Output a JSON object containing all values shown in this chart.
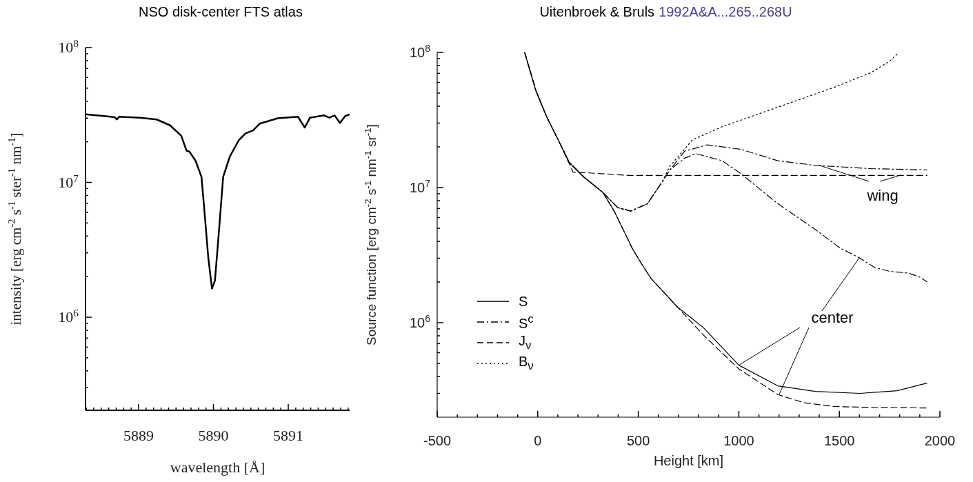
{
  "chart_data": [
    {
      "type": "line",
      "title": "NSO disk-center FTS atlas",
      "xlabel": "wavelength [Å]",
      "ylabel": "intensity [erg cm$^{-2}$ s$^{-1}$ ster$^{-1}$ nm$^{-1}$]",
      "log": "y",
      "line_style": "solid",
      "color": "#000000",
      "x": [
        5888.29,
        5888.56,
        5888.68,
        5888.71,
        5888.74,
        5889.02,
        5889.24,
        5889.42,
        5889.57,
        5889.64,
        5889.68,
        5889.76,
        5889.84,
        5889.88,
        5889.93,
        5889.98,
        5890.02,
        5890.07,
        5890.13,
        5890.22,
        5890.34,
        5890.43,
        5890.53,
        5890.62,
        5890.86,
        5891.13,
        5891.22,
        5891.29,
        5891.48,
        5891.55,
        5891.62,
        5891.69,
        5891.76,
        5891.82
      ],
      "values": [
        32000000.0,
        31000000.0,
        30400000.0,
        29300000.0,
        30700000.0,
        30200000.0,
        29300000.0,
        26500000.0,
        22200000.0,
        17200000.0,
        16900000.0,
        14500000.0,
        11000000.0,
        6100000.0,
        2800000.0,
        1630000.0,
        1870000.0,
        4100000.0,
        11000000.0,
        15600000.0,
        20600000.0,
        23100000.0,
        24300000.0,
        27300000.0,
        29900000.0,
        30700000.0,
        25500000.0,
        30200000.0,
        31400000.0,
        30200000.0,
        31400000.0,
        27600000.0,
        31000000.0,
        31900000.0
      ],
      "xlim": [
        5888.29,
        5891.82
      ],
      "ylim": [
        204000,
        100000000
      ],
      "xticks": [
        {
          "value": 5888.3,
          "label": null
        },
        {
          "value": 5888.4,
          "label": null
        },
        {
          "value": 5888.5,
          "label": null
        },
        {
          "value": 5888.6,
          "label": null
        },
        {
          "value": 5888.7,
          "label": null
        },
        {
          "value": 5888.8,
          "label": null
        },
        {
          "value": 5888.9,
          "label": null
        },
        5889,
        {
          "value": 5889.1,
          "label": null
        },
        {
          "value": 5889.2,
          "label": null
        },
        {
          "value": 5889.3,
          "label": null
        },
        {
          "value": 5889.4,
          "label": null
        },
        {
          "value": 5889.5,
          "label": null
        },
        {
          "value": 5889.6,
          "label": null
        },
        {
          "value": 5889.7,
          "label": null
        },
        {
          "value": 5889.8,
          "label": null
        },
        {
          "value": 5889.9,
          "label": null
        },
        5890,
        {
          "value": 5890.1,
          "label": null
        },
        {
          "value": 5890.2,
          "label": null
        },
        {
          "value": 5890.3,
          "label": null
        },
        {
          "value": 5890.4,
          "label": null
        },
        {
          "value": 5890.5,
          "label": null
        },
        {
          "value": 5890.6,
          "label": null
        },
        {
          "value": 5890.7,
          "label": null
        },
        {
          "value": 5890.8,
          "label": null
        },
        {
          "value": 5890.9,
          "label": null
        },
        5891,
        {
          "value": 5891.1,
          "label": null
        },
        {
          "value": 5891.2,
          "label": null
        },
        {
          "value": 5891.3,
          "label": null
        },
        {
          "value": 5891.4,
          "label": null
        },
        {
          "value": 5891.5,
          "label": null
        },
        {
          "value": 5891.6,
          "label": null
        },
        {
          "value": 5891.7,
          "label": null
        },
        {
          "value": 5891.8,
          "label": null
        }
      ],
      "yticks": [
        {
          "value": 300000,
          "label": null
        },
        {
          "value": 400000,
          "label": null
        },
        {
          "value": 500000,
          "label": null
        },
        {
          "value": 600000,
          "label": null
        },
        {
          "value": 700000,
          "label": null
        },
        {
          "value": 800000,
          "label": null
        },
        {
          "value": 900000,
          "label": null
        },
        {
          "value": 1000000,
          "label": "10$^{6}$"
        },
        {
          "value": 2000000,
          "label": null
        },
        {
          "value": 3000000,
          "label": null
        },
        {
          "value": 4000000,
          "label": null
        },
        {
          "value": 5000000,
          "label": null
        },
        {
          "value": 6000000,
          "label": null
        },
        {
          "value": 7000000,
          "label": null
        },
        {
          "value": 8000000,
          "label": null
        },
        {
          "value": 9000000,
          "label": null
        },
        {
          "value": 10000000,
          "label": "10$^{7}$"
        },
        {
          "value": 20000000,
          "label": null
        },
        {
          "value": 30000000,
          "label": null
        },
        {
          "value": 40000000,
          "label": null
        },
        {
          "value": 50000000,
          "label": null
        },
        {
          "value": 60000000,
          "label": null
        },
        {
          "value": 70000000,
          "label": null
        },
        {
          "value": 80000000,
          "label": null
        },
        {
          "value": 90000000,
          "label": null
        },
        {
          "value": 100000000,
          "label": "10$^{8}$"
        }
      ]
    },
    {
      "type": "line",
      "title": "Uitenbroek & Bruls",
      "subtitle": "1992A&A...265..268U",
      "xlabel": "Height [km]",
      "ylabel": "Source function [erg cm$^{-2}$ s$^{-1}$ nm$^{-1}$ sr$^{-1}$]",
      "log": "y",
      "legend": "bottom left",
      "annotations": [
        {
          "text": "wing",
          "x": 1400,
          "y": 14600000
        },
        {
          "text": "center",
          "x": 1000,
          "y": 485000
        }
      ],
      "series": [
        {
          "name": "S",
          "color": "#000000",
          "line_style": "solid",
          "x": [
            -65,
            -9,
            46,
            102,
            157,
            231,
            324,
            380,
            435,
            472,
            528,
            565,
            694,
            824,
            1000,
            1194,
            1380,
            1602,
            1787,
            1935
          ],
          "values": [
            100000000.0,
            52000000.0,
            33000000.0,
            22500000.0,
            15300000.0,
            11900000.0,
            9200000.0,
            6700000.0,
            4550000.0,
            3500000.0,
            2560000.0,
            2110000.0,
            1310000.0,
            920000.0,
            485000.0,
            341000.0,
            310000.0,
            300000.0,
            314000.0,
            357000.0
          ]
        },
        {
          "name": "S$^{c}$",
          "color": "#000000",
          "line_style": "dashdot",
          "x": [
            -65,
            -9,
            46,
            102,
            157,
            231,
            324,
            398,
            463,
            546,
            620,
            657,
            731,
            843,
            1009,
            1194,
            1380,
            1658,
            1935
          ],
          "values": [
            100000000.0,
            52000000.0,
            33000000.0,
            22500000.0,
            15300000.0,
            11900000.0,
            9200000.0,
            7100000.0,
            6700000.0,
            7600000.0,
            11100000.0,
            13500000.0,
            18600000.0,
            20700000.0,
            19200000.0,
            15800000.0,
            14600000.0,
            13800000.0,
            13500000.0
          ]
        },
        {
          "color": "#000000",
          "line_style": "dashdot",
          "x": [
            -65,
            -9,
            46,
            102,
            157,
            231,
            324,
            398,
            463,
            546,
            620,
            657,
            731,
            787,
            917,
            1009,
            1194,
            1380,
            1500,
            1593,
            1676,
            1750,
            1843,
            1898,
            1935
          ],
          "values": [
            100000000.0,
            52000000.0,
            33000000.0,
            22500000.0,
            15300000.0,
            11900000.0,
            9200000.0,
            7100000.0,
            6700000.0,
            7600000.0,
            11100000.0,
            13500000.0,
            16500000.0,
            17800000.0,
            15800000.0,
            12700000.0,
            7600000.0,
            4900000.0,
            3600000.0,
            3060000.0,
            2560000.0,
            2400000.0,
            2330000.0,
            2180000.0,
            2010000.0
          ]
        },
        {
          "name": "J$_{ν}$",
          "color": "#000000",
          "line_style": "dashed",
          "x": [
            -65,
            -9,
            46,
            102,
            176,
            269,
            454,
            1935
          ],
          "values": [
            100000000.0,
            52000000.0,
            33000000.0,
            22500000.0,
            13000000.0,
            12800000.0,
            12300000.0,
            12300000.0
          ]
        },
        {
          "color": "#000000",
          "line_style": "dashed",
          "x": [
            -65,
            -9,
            46,
            102,
            157,
            231,
            324,
            380,
            435,
            472,
            528,
            565,
            694,
            824,
            1000,
            1194,
            1324,
            1472,
            1658,
            1935
          ],
          "values": [
            100000000.0,
            52000000.0,
            33000000.0,
            22500000.0,
            15300000.0,
            11900000.0,
            9200000.0,
            6700000.0,
            4550000.0,
            3500000.0,
            2560000.0,
            2110000.0,
            1310000.0,
            810000.0,
            455000.0,
            294000.0,
            256000.0,
            240000.0,
            236000.0,
            234000.0
          ]
        },
        {
          "name": "B$_{ν}$",
          "color": "#000000",
          "line_style": "dotted",
          "x": [
            -65,
            -9,
            46,
            102,
            157,
            231,
            324,
            398,
            463,
            546,
            620,
            657,
            769,
            917,
            1102,
            1287,
            1472,
            1658,
            1750,
            1796
          ],
          "values": [
            100000000.0,
            52000000.0,
            33000000.0,
            22500000.0,
            15300000.0,
            11900000.0,
            9200000.0,
            7100000.0,
            6700000.0,
            7600000.0,
            11100000.0,
            14400000.0,
            22500000.0,
            28200000.0,
            35200000.0,
            44000000.0,
            55000000.0,
            71000000.0,
            86000000.0,
            100000000.0
          ]
        }
      ],
      "xlim": [
        -500,
        2000
      ],
      "ylim": [
        200000,
        100000000
      ],
      "xticks": [
        -500,
        {
          "value": -400,
          "label": null
        },
        {
          "value": -300,
          "label": null
        },
        {
          "value": -200,
          "label": null
        },
        {
          "value": -100,
          "label": null
        },
        0,
        {
          "value": 100,
          "label": null
        },
        {
          "value": 200,
          "label": null
        },
        {
          "value": 300,
          "label": null
        },
        {
          "value": 400,
          "label": null
        },
        500,
        {
          "value": 600,
          "label": null
        },
        {
          "value": 700,
          "label": null
        },
        {
          "value": 800,
          "label": null
        },
        {
          "value": 900,
          "label": null
        },
        1000,
        {
          "value": 1100,
          "label": null
        },
        {
          "value": 1200,
          "label": null
        },
        {
          "value": 1300,
          "label": null
        },
        {
          "value": 1400,
          "label": null
        },
        1500,
        {
          "value": 1600,
          "label": null
        },
        {
          "value": 1700,
          "label": null
        },
        {
          "value": 1800,
          "label": null
        },
        {
          "value": 1900,
          "label": null
        },
        2000
      ],
      "yticks": [
        {
          "value": 300000,
          "label": null
        },
        {
          "value": 400000,
          "label": null
        },
        {
          "value": 500000,
          "label": null
        },
        {
          "value": 600000,
          "label": null
        },
        {
          "value": 700000,
          "label": null
        },
        {
          "value": 800000,
          "label": null
        },
        {
          "value": 900000,
          "label": null
        },
        {
          "value": 1000000,
          "label": "10$^{6}$"
        },
        {
          "value": 2000000,
          "label": null
        },
        {
          "value": 3000000,
          "label": null
        },
        {
          "value": 4000000,
          "label": null
        },
        {
          "value": 5000000,
          "label": null
        },
        {
          "value": 6000000,
          "label": null
        },
        {
          "value": 7000000,
          "label": null
        },
        {
          "value": 8000000,
          "label": null
        },
        {
          "value": 9000000,
          "label": null
        },
        {
          "value": 10000000,
          "label": "10$^{7}$"
        },
        {
          "value": 20000000,
          "label": null
        },
        {
          "value": 30000000,
          "label": null
        },
        {
          "value": 40000000,
          "label": null
        },
        {
          "value": 50000000,
          "label": null
        },
        {
          "value": 60000000,
          "label": null
        },
        {
          "value": 70000000,
          "label": null
        },
        {
          "value": 80000000,
          "label": null
        },
        {
          "value": 90000000,
          "label": null
        },
        {
          "value": 100000000,
          "label": "10$^{8}$"
        }
      ]
    }
  ]
}
